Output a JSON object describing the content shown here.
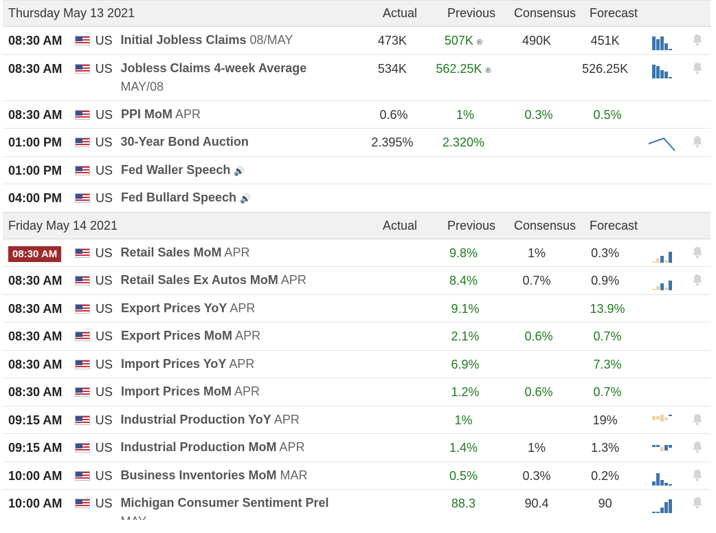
{
  "columns": {
    "actual": "Actual",
    "previous": "Previous",
    "consensus": "Consensus",
    "forecast": "Forecast"
  },
  "days": [
    {
      "label": "Thursday May 13 2021",
      "events": [
        {
          "time": "08:30 AM",
          "country": "US",
          "name": "Initial Jobless Claims",
          "period": "08/MAY",
          "actual": "473K",
          "previous": "507K",
          "prev_revised": "®",
          "consensus": "490K",
          "forecast": "451K",
          "chart": "jobless"
        },
        {
          "time": "08:30 AM",
          "country": "US",
          "name": "Jobless Claims 4-week Average",
          "period": "MAY/08",
          "actual": "534K",
          "previous": "562.25K",
          "prev_revised": "®",
          "consensus": "",
          "forecast": "526.25K",
          "chart": "jobless4"
        },
        {
          "time": "08:30 AM",
          "country": "US",
          "name": "PPI MoM",
          "period": "APR",
          "actual": "0.6%",
          "previous": "1%",
          "consensus": "0.3%",
          "forecast": "0.5%"
        },
        {
          "time": "01:00 PM",
          "country": "US",
          "name": "30-Year Bond Auction",
          "period": "",
          "actual": "2.395%",
          "previous": "2.320%",
          "consensus": "",
          "forecast": "",
          "chart": "line"
        },
        {
          "time": "01:00 PM",
          "country": "US",
          "name": "Fed Waller Speech",
          "period": "",
          "speech": true
        },
        {
          "time": "04:00 PM",
          "country": "US",
          "name": "Fed Bullard Speech",
          "period": "",
          "speech": true
        }
      ]
    },
    {
      "label": "Friday May 14 2021",
      "events": [
        {
          "time": "08:30 AM",
          "live": true,
          "country": "US",
          "name": "Retail Sales MoM",
          "period": "APR",
          "actual": "",
          "previous": "9.8%",
          "consensus": "1%",
          "forecast": "0.3%",
          "chart": "retail"
        },
        {
          "time": "08:30 AM",
          "country": "US",
          "name": "Retail Sales Ex Autos MoM",
          "period": "APR",
          "actual": "",
          "previous": "8.4%",
          "consensus": "0.7%",
          "forecast": "0.9%",
          "chart": "retail"
        },
        {
          "time": "08:30 AM",
          "country": "US",
          "name": "Export Prices YoY",
          "period": "APR",
          "actual": "",
          "previous": "9.1%",
          "consensus": "",
          "forecast": "13.9%",
          "forecast_green": true
        },
        {
          "time": "08:30 AM",
          "country": "US",
          "name": "Export Prices MoM",
          "period": "APR",
          "actual": "",
          "previous": "2.1%",
          "consensus": "0.6%",
          "forecast": "0.7%",
          "forecast_green": true
        },
        {
          "time": "08:30 AM",
          "country": "US",
          "name": "Import Prices YoY",
          "period": "APR",
          "actual": "",
          "previous": "6.9%",
          "consensus": "",
          "forecast": "7.3%",
          "forecast_green": true
        },
        {
          "time": "08:30 AM",
          "country": "US",
          "name": "Import Prices MoM",
          "period": "APR",
          "actual": "",
          "previous": "1.2%",
          "consensus": "0.6%",
          "forecast": "0.7%",
          "forecast_green": true
        },
        {
          "time": "09:15 AM",
          "country": "US",
          "name": "Industrial Production YoY",
          "period": "APR",
          "actual": "",
          "previous": "1%",
          "consensus": "",
          "forecast": "19%",
          "chart": "ipyoy"
        },
        {
          "time": "09:15 AM",
          "country": "US",
          "name": "Industrial Production MoM",
          "period": "APR",
          "actual": "",
          "previous": "1.4%",
          "consensus": "1%",
          "forecast": "1.3%",
          "chart": "ipmom"
        },
        {
          "time": "10:00 AM",
          "country": "US",
          "name": "Business Inventories MoM",
          "period": "MAR",
          "actual": "",
          "previous": "0.5%",
          "consensus": "0.3%",
          "forecast": "0.2%",
          "chart": "bizinv"
        },
        {
          "time": "10:00 AM",
          "country": "US",
          "name": "Michigan Consumer Sentiment Prel",
          "period": "MAY",
          "actual": "",
          "previous": "88.3",
          "consensus": "90.4",
          "forecast": "90",
          "chart": "mich"
        }
      ]
    }
  ],
  "colors": {
    "green": "#1f7a1f",
    "bar_blue": "#3b76b0",
    "bar_tan": "#f0d3a8",
    "live_badge": "#9d2a2a"
  }
}
